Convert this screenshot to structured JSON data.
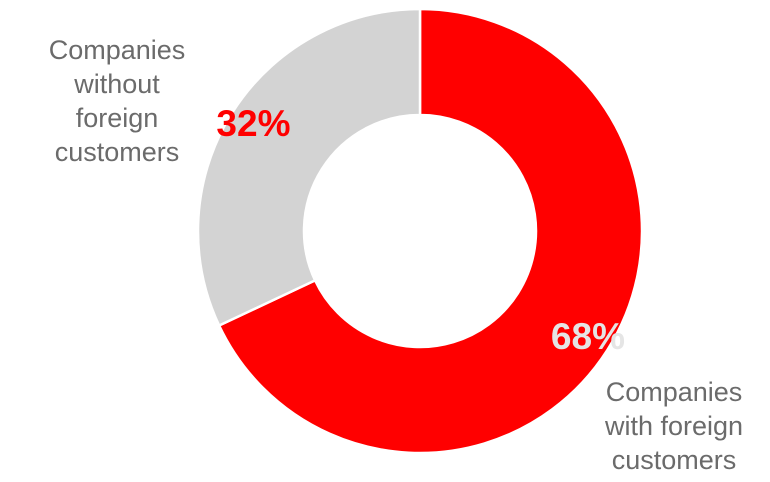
{
  "chart_data": {
    "type": "pie",
    "variant": "donut",
    "title": "",
    "start_angle_deg": 0,
    "direction": "clockwise",
    "slices": [
      {
        "label": "Companies\nwith foreign\ncustomers",
        "value": 68,
        "value_label": "68%",
        "color": "#ff0000",
        "value_label_color": "#e5e5e5"
      },
      {
        "label": "Companies\nwithout\nforeign\ncustomers",
        "value": 32,
        "value_label": "32%",
        "color": "#d3d3d3",
        "value_label_color": "#ff0000"
      }
    ],
    "category_label_color": "#6b6b6b",
    "separator_color": "#ffffff"
  }
}
